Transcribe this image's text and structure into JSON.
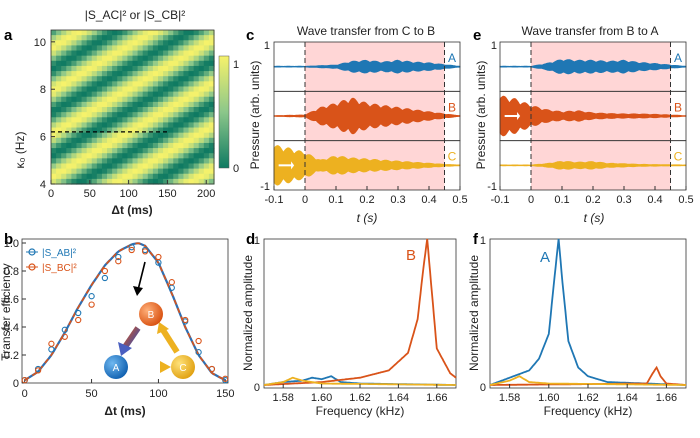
{
  "colors": {
    "A": "#1f77b4",
    "B": "#d95319",
    "C": "#edb120",
    "shade": "#ffd6d6",
    "cb_low": "#0f7a62",
    "cb_high": "#f6f26b",
    "fit": "#2f6fb2"
  },
  "panels": {
    "a": {
      "letter": "a",
      "title": "|S_AC|² or |S_CB|²",
      "xlabel": "Δt (ms)",
      "ylabel": "κ₀ (Hz)",
      "xticks": [
        "0",
        "50",
        "100",
        "150",
        "200"
      ],
      "yticks": [
        "4",
        "6",
        "8",
        "10"
      ],
      "colorbar_ticks": [
        "1",
        "0"
      ]
    },
    "b": {
      "letter": "b",
      "xlabel": "Δt (ms)",
      "ylabel": "Transfer efficiency",
      "xticks": [
        "0",
        "50",
        "100",
        "150"
      ],
      "yticks": [
        "0",
        "0.2",
        "0.4",
        "0.6",
        "0.8",
        "1.0"
      ],
      "legend": [
        "|S_AB|²",
        "|S_BC|²"
      ],
      "nodes": [
        "A",
        "B",
        "C"
      ]
    },
    "c": {
      "letter": "c",
      "title": "Wave transfer from C to B",
      "xlabel": "t (s)",
      "ylabel": "Pressure (arb. units)",
      "xticks": [
        "-0.1",
        "0",
        "0.1",
        "0.2",
        "0.3",
        "0.4",
        "0.5"
      ],
      "ytick_top": "1",
      "ytick_bottom": "-1",
      "channel_labels": [
        "A",
        "B",
        "C"
      ]
    },
    "d": {
      "letter": "d",
      "xlabel": "Frequency (kHz)",
      "ylabel": "Normalized amplitude",
      "xticks": [
        "1.58",
        "1.60",
        "1.62",
        "1.64",
        "1.66"
      ],
      "yticks": [
        "0",
        "1"
      ],
      "peak_label": "B"
    },
    "e": {
      "letter": "e",
      "title": "Wave transfer from B to A",
      "xlabel": "t (s)",
      "ylabel": "Pressure (arb. units)",
      "xticks": [
        "-0.1",
        "0",
        "0.1",
        "0.2",
        "0.3",
        "0.4",
        "0.5"
      ],
      "ytick_top": "1",
      "ytick_bottom": "-1",
      "channel_labels": [
        "A",
        "B",
        "C"
      ]
    },
    "f": {
      "letter": "f",
      "xlabel": "Frequency (kHz)",
      "ylabel": "Normalized amplitude",
      "xticks": [
        "1.58",
        "1.60",
        "1.62",
        "1.64",
        "1.66"
      ],
      "yticks": [
        "0",
        "1"
      ],
      "peak_label": "A"
    }
  },
  "chart_data": [
    {
      "panel": "a",
      "type": "heatmap",
      "title": "|S_AC|² or |S_CB|²",
      "xlabel": "Δt (ms)",
      "ylabel": "κ₀ (Hz)",
      "xlim": [
        0,
        210
      ],
      "ylim": [
        4,
        10.5
      ],
      "zlim": [
        0,
        1
      ],
      "dashed_line": {
        "y": 6.2,
        "x": [
          0,
          150
        ]
      }
    },
    {
      "panel": "b",
      "type": "scatter",
      "xlabel": "Δt (ms)",
      "ylabel": "Transfer efficiency",
      "xlim": [
        -2,
        152
      ],
      "ylim": [
        0,
        1.0
      ],
      "fit_curve": {
        "x": [
          0,
          10,
          20,
          30,
          40,
          50,
          60,
          70,
          80,
          85,
          90,
          100,
          110,
          120,
          130,
          140,
          150
        ],
        "y": [
          0.02,
          0.08,
          0.2,
          0.36,
          0.54,
          0.7,
          0.84,
          0.94,
          0.99,
          1.0,
          0.98,
          0.86,
          0.64,
          0.4,
          0.2,
          0.07,
          0.02
        ]
      },
      "series": [
        {
          "name": "|S_AB|²",
          "x": [
            0,
            10,
            20,
            30,
            40,
            50,
            60,
            70,
            80,
            90,
            100,
            110,
            120,
            130,
            140,
            150
          ],
          "y": [
            0.02,
            0.1,
            0.24,
            0.38,
            0.5,
            0.62,
            0.75,
            0.9,
            0.97,
            0.95,
            0.86,
            0.68,
            0.44,
            0.22,
            0.1,
            0.02
          ]
        },
        {
          "name": "|S_BC|²",
          "x": [
            0,
            10,
            20,
            30,
            40,
            50,
            60,
            70,
            80,
            90,
            100,
            110,
            120,
            130,
            140,
            150
          ],
          "y": [
            0.02,
            0.09,
            0.28,
            0.33,
            0.45,
            0.56,
            0.8,
            0.87,
            0.95,
            0.94,
            0.9,
            0.72,
            0.45,
            0.3,
            0.1,
            0.03
          ]
        }
      ]
    },
    {
      "panel": "c",
      "type": "line",
      "title": "Wave transfer from C to B",
      "xlabel": "t (s)",
      "ylabel": "Pressure (arb. units)",
      "xlim": [
        -0.1,
        0.5
      ],
      "shaded_interval": [
        0,
        0.45
      ],
      "traces": [
        {
          "name": "A",
          "envelope": {
            "t": [
              -0.1,
              0.0,
              0.1,
              0.15,
              0.2,
              0.25,
              0.3,
              0.35,
              0.4,
              0.45,
              0.5
            ],
            "amp": [
              0.02,
              0.02,
              0.08,
              0.25,
              0.3,
              0.22,
              0.3,
              0.22,
              0.18,
              0.1,
              0.02
            ]
          }
        },
        {
          "name": "B",
          "envelope": {
            "t": [
              -0.1,
              0.0,
              0.05,
              0.1,
              0.15,
              0.2,
              0.25,
              0.3,
              0.35,
              0.4,
              0.45,
              0.5
            ],
            "amp": [
              0.02,
              0.05,
              0.4,
              0.6,
              0.85,
              0.6,
              0.5,
              0.4,
              0.3,
              0.2,
              0.1,
              0.02
            ]
          }
        },
        {
          "name": "C",
          "envelope": {
            "t": [
              -0.1,
              -0.05,
              0.0,
              0.05,
              0.1,
              0.15,
              0.2,
              0.25,
              0.3,
              0.35,
              0.4,
              0.45,
              0.5
            ],
            "amp": [
              0.95,
              0.8,
              0.6,
              0.25,
              0.45,
              0.35,
              0.3,
              0.25,
              0.2,
              0.15,
              0.1,
              0.05,
              0.02
            ]
          }
        }
      ]
    },
    {
      "panel": "d",
      "type": "line",
      "xlabel": "Frequency (kHz)",
      "ylabel": "Normalized amplitude",
      "xlim": [
        1.57,
        1.67
      ],
      "ylim": [
        0,
        1
      ],
      "series": [
        {
          "name": "A",
          "x": [
            1.57,
            1.58,
            1.59,
            1.595,
            1.6,
            1.605,
            1.61,
            1.62,
            1.67
          ],
          "y": [
            0.0,
            0.02,
            0.03,
            0.05,
            0.04,
            0.06,
            0.02,
            0.01,
            0.0
          ]
        },
        {
          "name": "B",
          "x": [
            1.57,
            1.6,
            1.62,
            1.635,
            1.645,
            1.65,
            1.653,
            1.655,
            1.657,
            1.66,
            1.667,
            1.67
          ],
          "y": [
            0.0,
            0.02,
            0.05,
            0.1,
            0.22,
            0.45,
            0.8,
            1.0,
            0.7,
            0.25,
            0.08,
            0.05
          ]
        },
        {
          "name": "C",
          "x": [
            1.57,
            1.58,
            1.585,
            1.59,
            1.6,
            1.67
          ],
          "y": [
            0.0,
            0.02,
            0.05,
            0.03,
            0.01,
            0.0
          ]
        }
      ]
    },
    {
      "panel": "e",
      "type": "line",
      "title": "Wave transfer from B to A",
      "xlabel": "t (s)",
      "ylabel": "Pressure (arb. units)",
      "xlim": [
        -0.1,
        0.5
      ],
      "shaded_interval": [
        0,
        0.45
      ],
      "traces": [
        {
          "name": "A",
          "envelope": {
            "t": [
              -0.1,
              0.0,
              0.05,
              0.1,
              0.15,
              0.2,
              0.25,
              0.3,
              0.35,
              0.4,
              0.45,
              0.5
            ],
            "amp": [
              0.02,
              0.02,
              0.15,
              0.35,
              0.3,
              0.3,
              0.25,
              0.3,
              0.2,
              0.15,
              0.08,
              0.02
            ]
          }
        },
        {
          "name": "B",
          "envelope": {
            "t": [
              -0.1,
              -0.05,
              0.0,
              0.05,
              0.1,
              0.15,
              0.2,
              0.25,
              0.3,
              0.35,
              0.4,
              0.45,
              0.5
            ],
            "amp": [
              0.95,
              0.8,
              0.5,
              0.3,
              0.2,
              0.25,
              0.15,
              0.12,
              0.1,
              0.1,
              0.08,
              0.05,
              0.02
            ]
          }
        },
        {
          "name": "C",
          "envelope": {
            "t": [
              -0.1,
              0.0,
              0.05,
              0.1,
              0.15,
              0.2,
              0.25,
              0.3,
              0.35,
              0.4,
              0.45,
              0.5
            ],
            "amp": [
              0.02,
              0.02,
              0.08,
              0.2,
              0.15,
              0.18,
              0.1,
              0.08,
              0.05,
              0.04,
              0.03,
              0.02
            ]
          }
        }
      ]
    },
    {
      "panel": "f",
      "type": "line",
      "xlabel": "Frequency (kHz)",
      "ylabel": "Normalized amplitude",
      "xlim": [
        1.57,
        1.67
      ],
      "ylim": [
        0,
        1
      ],
      "series": [
        {
          "name": "A",
          "x": [
            1.57,
            1.58,
            1.59,
            1.595,
            1.6,
            1.603,
            1.605,
            1.607,
            1.61,
            1.615,
            1.62,
            1.63,
            1.67
          ],
          "y": [
            0.0,
            0.05,
            0.1,
            0.18,
            0.35,
            0.75,
            1.0,
            0.7,
            0.3,
            0.12,
            0.06,
            0.02,
            0.0
          ]
        },
        {
          "name": "B",
          "x": [
            1.57,
            1.65,
            1.653,
            1.655,
            1.657,
            1.66,
            1.67
          ],
          "y": [
            0.0,
            0.01,
            0.08,
            0.12,
            0.06,
            0.01,
            0.0
          ]
        },
        {
          "name": "C",
          "x": [
            1.57,
            1.58,
            1.585,
            1.59,
            1.6,
            1.67
          ],
          "y": [
            0.0,
            0.03,
            0.06,
            0.02,
            0.01,
            0.0
          ]
        }
      ]
    }
  ]
}
